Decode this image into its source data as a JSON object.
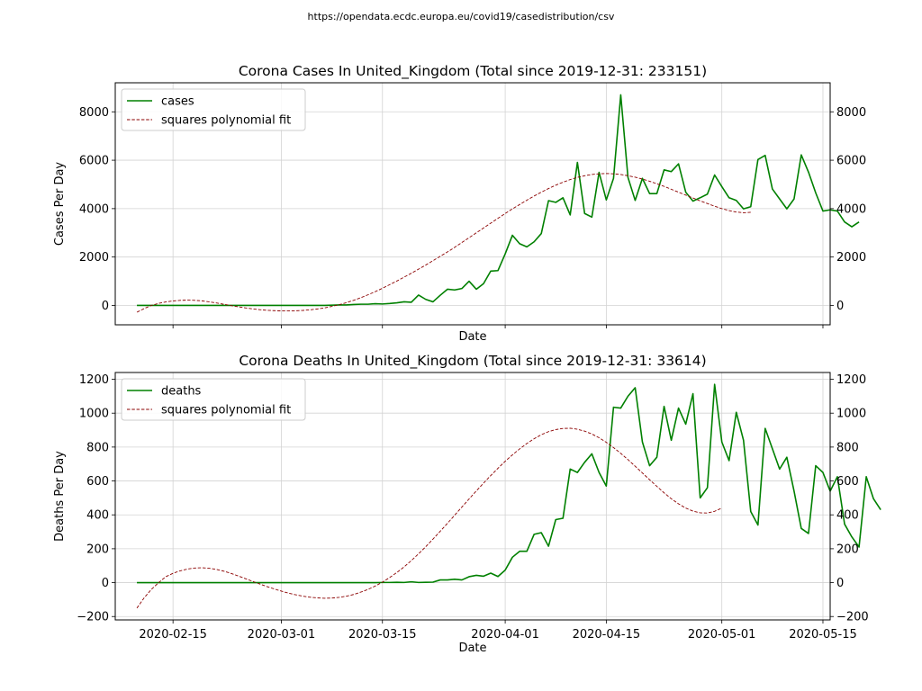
{
  "source_note": "https://opendata.ecdc.europa.eu/covid19/casedistribution/csv",
  "colors": {
    "series": "#008000",
    "fit": "#8b0000",
    "grid": "#d3d3d3"
  },
  "chart_data": [
    {
      "type": "line",
      "title": "Corona Cases In United_Kingdom (Total since 2019-12-31: 233151)",
      "xlabel": "Date",
      "ylabel": "Cases Per Day",
      "show_xticklabels": false,
      "ylim": [
        -800,
        9200
      ],
      "yticks": [
        0,
        2000,
        4000,
        6000,
        8000
      ],
      "ytick_labels": [
        "0",
        "2000",
        "4000",
        "6000",
        "8000"
      ],
      "xlim": [
        "2020-02-07",
        "2020-05-16"
      ],
      "xticks": [
        "2020-02-15",
        "2020-03-01",
        "2020-03-15",
        "2020-04-01",
        "2020-04-15",
        "2020-05-01",
        "2020-05-15"
      ],
      "xtick_labels": [
        "2020-02-15",
        "2020-03-01",
        "2020-03-15",
        "2020-04-01",
        "2020-04-15",
        "2020-05-01",
        "2020-05-15"
      ],
      "grid": true,
      "legend": "top-left",
      "start_date": "2020-02-10",
      "series": [
        {
          "name": "cases",
          "style": "solid",
          "values": [
            0,
            0,
            0,
            0,
            0,
            0,
            0,
            0,
            0,
            0,
            0,
            0,
            0,
            0,
            0,
            0,
            0,
            0,
            0,
            0,
            0,
            0,
            0,
            0,
            0,
            0,
            0,
            10,
            20,
            20,
            40,
            50,
            50,
            70,
            60,
            80,
            110,
            150,
            130,
            430,
            250,
            150,
            420,
            670,
            640,
            700,
            1000,
            670,
            900,
            1420,
            1440,
            2130,
            2900,
            2550,
            2420,
            2630,
            2970,
            4330,
            4260,
            4450,
            3740,
            5910,
            3800,
            3650,
            5500,
            4360,
            5250,
            8700,
            5290,
            4340,
            5250,
            4620,
            4620,
            5600,
            5530,
            5850,
            4680,
            4310,
            4450,
            4600,
            5390,
            4910,
            4450,
            4340,
            3990,
            4080,
            6030,
            6200,
            4810,
            4400,
            3990,
            4400,
            6220,
            5510,
            4650,
            3900,
            3950,
            3900,
            3450,
            3250,
            3450
          ]
        },
        {
          "name": "squares polynomial fit",
          "style": "dashed",
          "values": [
            -280,
            -130,
            0,
            85,
            145,
            185,
            210,
            220,
            210,
            190,
            150,
            105,
            50,
            -5,
            -55,
            -100,
            -140,
            -175,
            -200,
            -215,
            -225,
            -228,
            -220,
            -205,
            -180,
            -145,
            -100,
            -40,
            30,
            115,
            210,
            320,
            440,
            570,
            710,
            860,
            1010,
            1170,
            1330,
            1500,
            1670,
            1850,
            2030,
            2210,
            2400,
            2600,
            2800,
            3000,
            3200,
            3400,
            3600,
            3800,
            3990,
            4170,
            4350,
            4520,
            4680,
            4830,
            4970,
            5090,
            5200,
            5290,
            5360,
            5410,
            5440,
            5450,
            5440,
            5410,
            5360,
            5300,
            5220,
            5130,
            5030,
            4920,
            4800,
            4680,
            4560,
            4440,
            4320,
            4210,
            4100,
            4000,
            3920,
            3860,
            3830,
            3850
          ]
        }
      ]
    },
    {
      "type": "line",
      "title": "Corona Deaths In United_Kingdom (Total since 2019-12-31: 33614)",
      "xlabel": "Date",
      "ylabel": "Deaths Per Day",
      "show_xticklabels": true,
      "ylim": [
        -220,
        1240
      ],
      "yticks": [
        -200,
        0,
        200,
        400,
        600,
        800,
        1000,
        1200
      ],
      "ytick_labels": [
        "−200",
        "0",
        "200",
        "400",
        "600",
        "800",
        "1000",
        "1200"
      ],
      "xlim": [
        "2020-02-07",
        "2020-05-16"
      ],
      "xticks": [
        "2020-02-15",
        "2020-03-01",
        "2020-03-15",
        "2020-04-01",
        "2020-04-15",
        "2020-05-01",
        "2020-05-15"
      ],
      "xtick_labels": [
        "2020-02-15",
        "2020-03-01",
        "2020-03-15",
        "2020-04-01",
        "2020-04-15",
        "2020-05-01",
        "2020-05-15"
      ],
      "grid": true,
      "legend": "top-left",
      "start_date": "2020-02-10",
      "series": [
        {
          "name": "deaths",
          "style": "solid",
          "values": [
            0,
            0,
            0,
            0,
            0,
            0,
            0,
            0,
            0,
            0,
            0,
            0,
            0,
            0,
            0,
            0,
            0,
            0,
            0,
            0,
            0,
            0,
            0,
            0,
            0,
            0,
            0,
            0,
            0,
            0,
            0,
            0,
            0,
            0,
            1,
            1,
            2,
            1,
            5,
            1,
            2,
            3,
            16,
            16,
            20,
            16,
            35,
            43,
            38,
            56,
            36,
            74,
            150,
            185,
            185,
            285,
            295,
            215,
            372,
            380,
            670,
            650,
            710,
            760,
            650,
            570,
            1035,
            1030,
            1100,
            1150,
            830,
            690,
            740,
            1040,
            840,
            1030,
            935,
            1115,
            500,
            560,
            1170,
            830,
            720,
            1005,
            840,
            420,
            340,
            910,
            790,
            670,
            740,
            540,
            320,
            290,
            690,
            650,
            540,
            625,
            345,
            270,
            210,
            625,
            495,
            430
          ]
        },
        {
          "name": "squares polynomial fit",
          "style": "dashed",
          "values": [
            -150,
            -90,
            -40,
            0,
            35,
            55,
            70,
            80,
            86,
            88,
            85,
            78,
            68,
            55,
            40,
            24,
            8,
            -8,
            -23,
            -37,
            -50,
            -62,
            -72,
            -80,
            -86,
            -90,
            -92,
            -91,
            -87,
            -80,
            -70,
            -56,
            -40,
            -20,
            3,
            30,
            60,
            93,
            130,
            170,
            212,
            257,
            303,
            350,
            398,
            446,
            494,
            541,
            587,
            632,
            675,
            716,
            754,
            789,
            821,
            849,
            873,
            891,
            903,
            910,
            911,
            905,
            894,
            877,
            855,
            828,
            797,
            763,
            726,
            687,
            647,
            607,
            568,
            530,
            495,
            465,
            440,
            422,
            412,
            411,
            421,
            440
          ]
        }
      ]
    }
  ]
}
